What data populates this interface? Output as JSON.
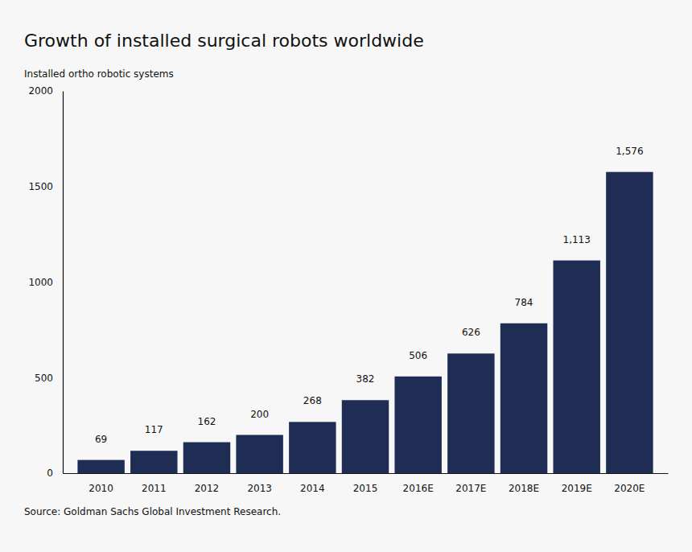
{
  "chart_data": {
    "type": "bar",
    "title": "Growth of installed surgical robots worldwide",
    "ylabel": "Installed ortho robotic systems",
    "source": "Source: Goldman Sachs Global Investment Research.",
    "categories": [
      "2010",
      "2011",
      "2012",
      "2013",
      "2014",
      "2015",
      "2016E",
      "2017E",
      "2018E",
      "2019E",
      "2020E"
    ],
    "values": [
      69,
      117,
      162,
      200,
      268,
      382,
      506,
      626,
      784,
      1113,
      1576
    ],
    "value_labels": [
      "69",
      "117",
      "162",
      "200",
      "268",
      "382",
      "506",
      "626",
      "784",
      "1,113",
      "1,576"
    ],
    "color": "#1f2d55",
    "ylim": [
      0,
      2000
    ],
    "yticks": [
      0,
      500,
      1000,
      1500,
      2000
    ],
    "grid": false,
    "data_labels": true
  }
}
